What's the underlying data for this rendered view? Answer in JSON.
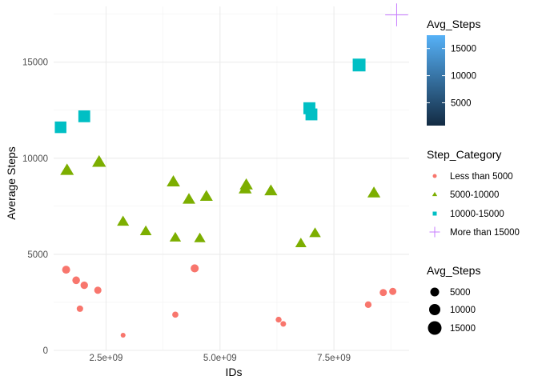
{
  "chart_data": {
    "type": "scatter",
    "xlabel": "IDs",
    "ylabel": "Average Steps",
    "xlim": [
      1350000000,
      9150000000
    ],
    "ylim": [
      0,
      17900
    ],
    "x_ticks": [
      2500000000,
      5000000000,
      7500000000
    ],
    "x_tick_labels": [
      "2.5e+09",
      "5.0e+09",
      "7.5e+09"
    ],
    "y_ticks": [
      0,
      5000,
      10000,
      15000
    ],
    "y_tick_labels": [
      "0",
      "5000",
      "10000",
      "15000"
    ],
    "grid": true,
    "categories": [
      {
        "name": "Less than 5000",
        "color": "#F8766D",
        "shape": "circle"
      },
      {
        "name": "5000-10000",
        "color": "#7CAE00",
        "shape": "triangle"
      },
      {
        "name": "10000-15000",
        "color": "#00BFC4",
        "shape": "square"
      },
      {
        "name": "More than 15000",
        "color": "#C77CFF",
        "shape": "plus"
      }
    ],
    "series": [
      {
        "name": "Less than 5000",
        "points": [
          {
            "x": 1624000000,
            "y": 4200
          },
          {
            "x": 1844000000,
            "y": 3650
          },
          {
            "x": 1927000000,
            "y": 2170
          },
          {
            "x": 2022000000,
            "y": 3390
          },
          {
            "x": 2320000000,
            "y": 3130
          },
          {
            "x": 2874000000,
            "y": 790
          },
          {
            "x": 4020000000,
            "y": 1860
          },
          {
            "x": 4445000000,
            "y": 4270
          },
          {
            "x": 6287000000,
            "y": 1600
          },
          {
            "x": 6389000000,
            "y": 1380
          },
          {
            "x": 8253000000,
            "y": 2380
          },
          {
            "x": 8583000000,
            "y": 3010
          },
          {
            "x": 8792000000,
            "y": 3070
          }
        ]
      },
      {
        "name": "5000-10000",
        "points": [
          {
            "x": 1644000000,
            "y": 9370
          },
          {
            "x": 2347000000,
            "y": 9800
          },
          {
            "x": 2873000000,
            "y": 6700
          },
          {
            "x": 3372000000,
            "y": 6200
          },
          {
            "x": 3977000000,
            "y": 8770
          },
          {
            "x": 4020000000,
            "y": 5870
          },
          {
            "x": 4319000000,
            "y": 7860
          },
          {
            "x": 4558000000,
            "y": 5830
          },
          {
            "x": 4702000000,
            "y": 8010
          },
          {
            "x": 5553000000,
            "y": 8400
          },
          {
            "x": 5577000000,
            "y": 8610
          },
          {
            "x": 6117000000,
            "y": 8300
          },
          {
            "x": 6775000000,
            "y": 5570
          },
          {
            "x": 7086000000,
            "y": 6100
          },
          {
            "x": 8378000000,
            "y": 8190
          }
        ]
      },
      {
        "name": "10000-15000",
        "points": [
          {
            "x": 1503000000,
            "y": 11610
          },
          {
            "x": 2022000000,
            "y": 12180
          },
          {
            "x": 6962000000,
            "y": 12600
          },
          {
            "x": 7007000000,
            "y": 12280
          },
          {
            "x": 8053000000,
            "y": 14850
          }
        ]
      },
      {
        "name": "More than 15000",
        "points": [
          {
            "x": 8877000000,
            "y": 17460
          }
        ]
      }
    ],
    "legends": {
      "colorbar": {
        "title": "Avg_Steps",
        "ticks": [
          5000,
          10000,
          15000
        ],
        "tick_labels": [
          "5000",
          "10000",
          "15000"
        ],
        "range": [
          790,
          17460
        ],
        "color_low": "#132B43",
        "color_high": "#56B1F7"
      },
      "category": {
        "title": "Step_Category"
      },
      "size": {
        "title": "Avg_Steps",
        "labels": [
          "5000",
          "10000",
          "15000"
        ]
      }
    }
  }
}
